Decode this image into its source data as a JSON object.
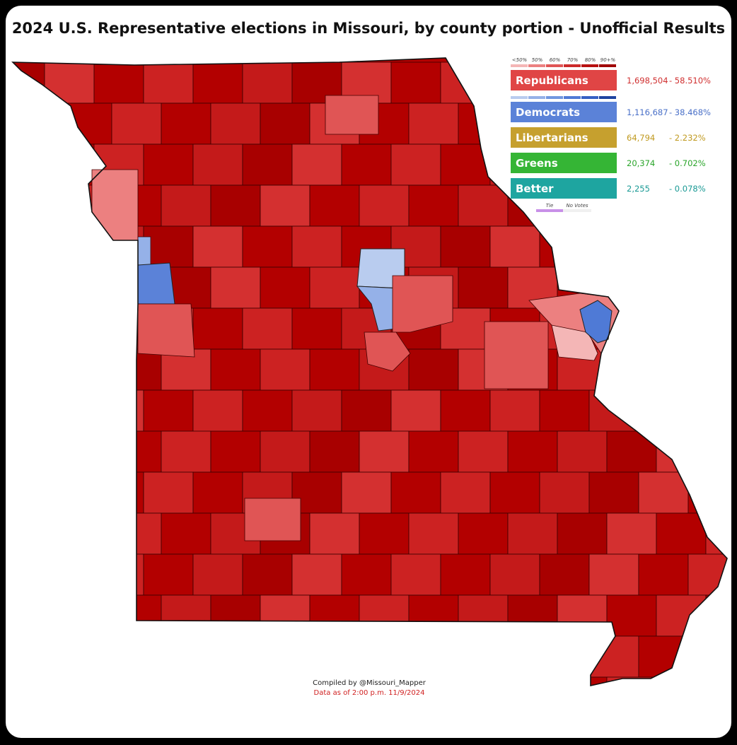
{
  "header": {
    "title": "2024 U.S. Representative elections in Missouri, by county portion - Unofficial Results"
  },
  "legend": {
    "bins": [
      "<50%",
      "50%",
      "60%",
      "70%",
      "80%",
      "90+%"
    ],
    "rep_shades": [
      "#f4b6b6",
      "#ec8080",
      "#e05555",
      "#cc2a2a",
      "#b81010",
      "#a00000"
    ],
    "dem_shades": [
      "#b9ccef",
      "#95b1e8",
      "#7097e0",
      "#4f7ad6",
      "#3560c4",
      "#1f44a0"
    ],
    "parties": [
      {
        "name": "Republicans",
        "color": "#e04545",
        "text_color": "#d03030",
        "votes": "1,698,504",
        "share": "-  58.510%"
      },
      {
        "name": "Democrats",
        "color": "#5b82d8",
        "text_color": "#4a70c8",
        "votes": "1,116,687",
        "share": "-  38.468%"
      },
      {
        "name": "Libertarians",
        "color": "#c6a02e",
        "text_color": "#c09a20",
        "votes": "64,794",
        "share": "-  2.232%"
      },
      {
        "name": "Greens",
        "color": "#35b535",
        "text_color": "#2aa52a",
        "votes": "20,374",
        "share": "-  0.702%"
      },
      {
        "name": "Better",
        "color": "#1ea5a0",
        "text_color": "#1a9a95",
        "votes": "2,255",
        "share": "-  0.078%"
      }
    ],
    "tie": "Tie",
    "no_votes": "No Votes"
  },
  "footer": {
    "credit": "Compiled by @Missouri_Mapper",
    "date": "Data as of 2:00 p.m. 11/9/2024"
  }
}
